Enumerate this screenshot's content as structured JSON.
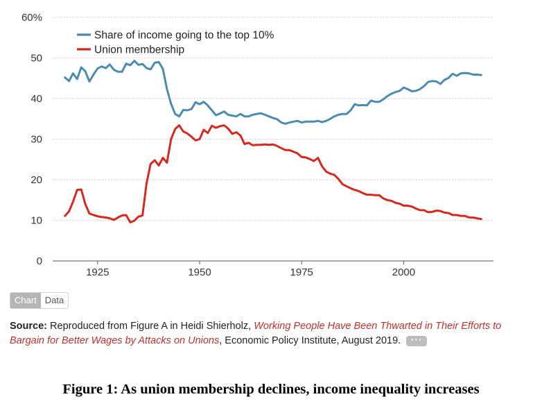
{
  "chart_data": {
    "type": "line",
    "title": "",
    "xlabel": "",
    "ylabel": "",
    "xlim": [
      1914,
      2022
    ],
    "ylim": [
      0,
      60
    ],
    "x_ticks": [
      1925,
      1950,
      1975,
      2000
    ],
    "y_ticks": [
      0,
      10,
      20,
      30,
      40,
      50,
      60
    ],
    "y_tick_labels": [
      "0",
      "10",
      "20",
      "30",
      "40",
      "50",
      "60%"
    ],
    "grid": "horizontal dotted",
    "legend_position": "top-left",
    "series": [
      {
        "name": "Share of income going to the top 10%",
        "color": "#4b8bb0",
        "points": [
          [
            1917,
            45.2
          ],
          [
            1918,
            44.3
          ],
          [
            1919,
            46.2
          ],
          [
            1920,
            44.8
          ],
          [
            1921,
            47.7
          ],
          [
            1922,
            46.7
          ],
          [
            1923,
            44.2
          ],
          [
            1924,
            45.9
          ],
          [
            1925,
            47.4
          ],
          [
            1926,
            47.9
          ],
          [
            1927,
            47.5
          ],
          [
            1928,
            48.4
          ],
          [
            1929,
            47.1
          ],
          [
            1930,
            46.6
          ],
          [
            1931,
            46.6
          ],
          [
            1932,
            48.6
          ],
          [
            1933,
            48.2
          ],
          [
            1934,
            49.3
          ],
          [
            1935,
            48.3
          ],
          [
            1936,
            48.5
          ],
          [
            1937,
            47.5
          ],
          [
            1938,
            47.2
          ],
          [
            1939,
            48.8
          ],
          [
            1940,
            49.0
          ],
          [
            1941,
            47.3
          ],
          [
            1942,
            42.3
          ],
          [
            1943,
            38.7
          ],
          [
            1944,
            36.2
          ],
          [
            1945,
            35.6
          ],
          [
            1946,
            37.2
          ],
          [
            1947,
            37.1
          ],
          [
            1948,
            37.4
          ],
          [
            1949,
            39.1
          ],
          [
            1950,
            38.6
          ],
          [
            1951,
            39.2
          ],
          [
            1952,
            38.3
          ],
          [
            1953,
            37.1
          ],
          [
            1954,
            35.9
          ],
          [
            1955,
            36.3
          ],
          [
            1956,
            36.8
          ],
          [
            1957,
            36.0
          ],
          [
            1958,
            35.8
          ],
          [
            1959,
            35.6
          ],
          [
            1960,
            36.2
          ],
          [
            1961,
            35.6
          ],
          [
            1962,
            35.6
          ],
          [
            1963,
            36.0
          ],
          [
            1964,
            36.2
          ],
          [
            1965,
            36.4
          ],
          [
            1966,
            36.0
          ],
          [
            1967,
            35.6
          ],
          [
            1968,
            35.2
          ],
          [
            1969,
            34.9
          ],
          [
            1970,
            34.1
          ],
          [
            1971,
            33.8
          ],
          [
            1972,
            34.1
          ],
          [
            1973,
            34.3
          ],
          [
            1974,
            34.5
          ],
          [
            1975,
            34.1
          ],
          [
            1976,
            34.3
          ],
          [
            1977,
            34.3
          ],
          [
            1978,
            34.3
          ],
          [
            1979,
            34.5
          ],
          [
            1980,
            34.2
          ],
          [
            1981,
            34.5
          ],
          [
            1982,
            35.0
          ],
          [
            1983,
            35.6
          ],
          [
            1984,
            36.0
          ],
          [
            1985,
            36.2
          ],
          [
            1986,
            36.2
          ],
          [
            1987,
            37.1
          ],
          [
            1988,
            38.6
          ],
          [
            1989,
            38.3
          ],
          [
            1990,
            38.4
          ],
          [
            1991,
            38.3
          ],
          [
            1992,
            39.5
          ],
          [
            1993,
            39.2
          ],
          [
            1994,
            39.2
          ],
          [
            1995,
            39.8
          ],
          [
            1996,
            40.6
          ],
          [
            1997,
            41.2
          ],
          [
            1998,
            41.6
          ],
          [
            1999,
            41.9
          ],
          [
            2000,
            42.7
          ],
          [
            2001,
            42.3
          ],
          [
            2002,
            41.8
          ],
          [
            2003,
            41.9
          ],
          [
            2004,
            42.3
          ],
          [
            2005,
            43.1
          ],
          [
            2006,
            44.1
          ],
          [
            2007,
            44.3
          ],
          [
            2008,
            44.2
          ],
          [
            2009,
            43.6
          ],
          [
            2010,
            44.6
          ],
          [
            2011,
            45.1
          ],
          [
            2012,
            46.1
          ],
          [
            2013,
            45.6
          ],
          [
            2014,
            46.2
          ],
          [
            2015,
            46.3
          ],
          [
            2016,
            46.2
          ],
          [
            2017,
            45.9
          ],
          [
            2018,
            45.9
          ],
          [
            2019,
            45.8
          ]
        ]
      },
      {
        "name": "Union membership",
        "color": "#d5281e",
        "points": [
          [
            1917,
            11.1
          ],
          [
            1918,
            12.2
          ],
          [
            1919,
            14.6
          ],
          [
            1920,
            17.5
          ],
          [
            1921,
            17.6
          ],
          [
            1922,
            14.0
          ],
          [
            1923,
            11.7
          ],
          [
            1924,
            11.3
          ],
          [
            1925,
            11.0
          ],
          [
            1926,
            10.8
          ],
          [
            1927,
            10.7
          ],
          [
            1928,
            10.5
          ],
          [
            1929,
            10.1
          ],
          [
            1930,
            10.7
          ],
          [
            1931,
            11.2
          ],
          [
            1932,
            11.3
          ],
          [
            1933,
            9.5
          ],
          [
            1934,
            9.9
          ],
          [
            1935,
            10.9
          ],
          [
            1936,
            11.2
          ],
          [
            1937,
            19.1
          ],
          [
            1938,
            23.9
          ],
          [
            1939,
            24.8
          ],
          [
            1940,
            23.5
          ],
          [
            1941,
            25.4
          ],
          [
            1942,
            24.2
          ],
          [
            1943,
            30.0
          ],
          [
            1944,
            32.5
          ],
          [
            1945,
            33.4
          ],
          [
            1946,
            31.9
          ],
          [
            1947,
            31.4
          ],
          [
            1948,
            30.6
          ],
          [
            1949,
            29.7
          ],
          [
            1950,
            30.0
          ],
          [
            1951,
            32.3
          ],
          [
            1952,
            31.5
          ],
          [
            1953,
            33.3
          ],
          [
            1954,
            32.8
          ],
          [
            1955,
            33.2
          ],
          [
            1956,
            33.4
          ],
          [
            1957,
            32.6
          ],
          [
            1958,
            31.3
          ],
          [
            1959,
            31.7
          ],
          [
            1960,
            30.9
          ],
          [
            1961,
            28.8
          ],
          [
            1962,
            29.1
          ],
          [
            1963,
            28.5
          ],
          [
            1964,
            28.6
          ],
          [
            1965,
            28.6
          ],
          [
            1966,
            28.7
          ],
          [
            1967,
            28.6
          ],
          [
            1968,
            28.7
          ],
          [
            1969,
            28.3
          ],
          [
            1970,
            27.8
          ],
          [
            1971,
            27.3
          ],
          [
            1972,
            27.3
          ],
          [
            1973,
            26.9
          ],
          [
            1974,
            26.5
          ],
          [
            1975,
            25.6
          ],
          [
            1976,
            25.5
          ],
          [
            1977,
            25.1
          ],
          [
            1978,
            24.6
          ],
          [
            1979,
            25.4
          ],
          [
            1980,
            23.3
          ],
          [
            1981,
            22.0
          ],
          [
            1982,
            21.5
          ],
          [
            1983,
            21.2
          ],
          [
            1984,
            20.2
          ],
          [
            1985,
            18.9
          ],
          [
            1986,
            18.4
          ],
          [
            1987,
            17.9
          ],
          [
            1988,
            17.5
          ],
          [
            1989,
            17.2
          ],
          [
            1990,
            16.7
          ],
          [
            1991,
            16.3
          ],
          [
            1992,
            16.3
          ],
          [
            1993,
            16.2
          ],
          [
            1994,
            16.2
          ],
          [
            1995,
            15.4
          ],
          [
            1996,
            15.0
          ],
          [
            1997,
            14.8
          ],
          [
            1998,
            14.3
          ],
          [
            1999,
            14.1
          ],
          [
            2000,
            13.6
          ],
          [
            2001,
            13.6
          ],
          [
            2002,
            13.4
          ],
          [
            2003,
            12.9
          ],
          [
            2004,
            12.5
          ],
          [
            2005,
            12.5
          ],
          [
            2006,
            12.0
          ],
          [
            2007,
            12.1
          ],
          [
            2008,
            12.4
          ],
          [
            2009,
            12.3
          ],
          [
            2010,
            11.9
          ],
          [
            2011,
            11.8
          ],
          [
            2012,
            11.3
          ],
          [
            2013,
            11.3
          ],
          [
            2014,
            11.1
          ],
          [
            2015,
            11.1
          ],
          [
            2016,
            10.7
          ],
          [
            2017,
            10.7
          ],
          [
            2018,
            10.5
          ],
          [
            2019,
            10.3
          ]
        ]
      }
    ]
  },
  "controls": {
    "chart_label": "Chart",
    "data_label": "Data"
  },
  "source": {
    "label": "Source:",
    "text_before": "Reproduced from Figure A in Heidi Shierholz, ",
    "link_title": "Working People Have Been Thwarted in Their Efforts to Bargain for Better Wages by Attacks on Unions",
    "text_after": ", Economic Policy Institute, August 2019.",
    "more_label": "···"
  },
  "caption": "Figure 1: As union membership declines, income inequality increases"
}
